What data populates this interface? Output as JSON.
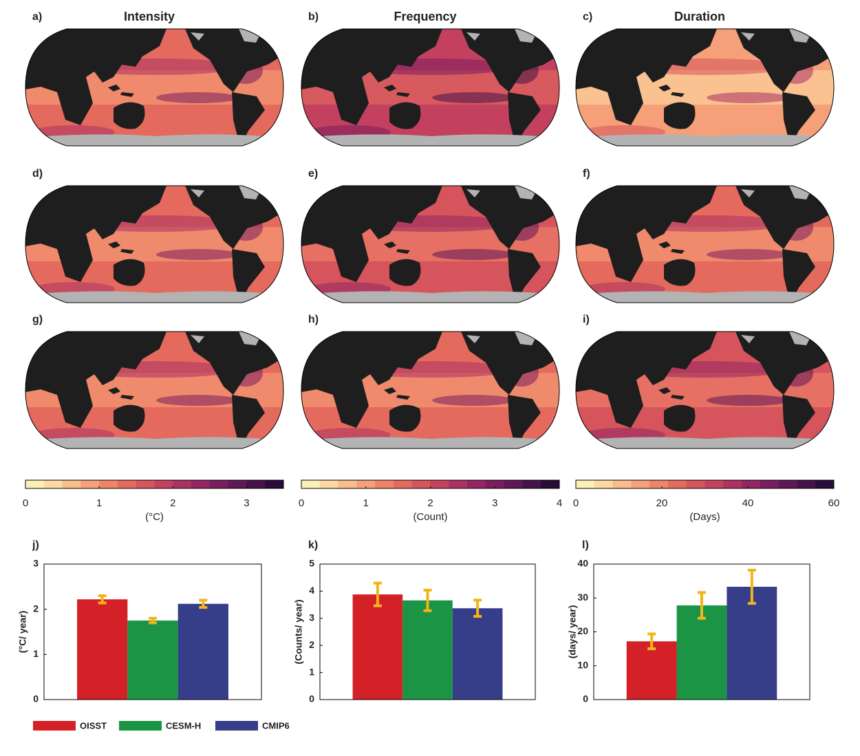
{
  "maps": {
    "column_titles": [
      "Intensity",
      "Frequency",
      "Duration"
    ],
    "panel_labels": [
      "a)",
      "b)",
      "c)",
      "d)",
      "e)",
      "f)",
      "g)",
      "h)",
      "i)"
    ]
  },
  "colormap": [
    "#fdf0b7",
    "#fbd9a0",
    "#f8bd8a",
    "#f5a078",
    "#ef8468",
    "#e56a5e",
    "#d6545c",
    "#c3415f",
    "#ac3262",
    "#932662",
    "#7a1d5f",
    "#5f1757",
    "#45124a",
    "#2a0c38"
  ],
  "colorbars": [
    {
      "xlim": [
        0,
        3.5
      ],
      "xticks": [
        0,
        1,
        2,
        3
      ],
      "label": "(°C)"
    },
    {
      "xlim": [
        0,
        4
      ],
      "xticks": [
        0,
        1,
        2,
        3,
        4
      ],
      "label": "(Count)"
    },
    {
      "xlim": [
        0,
        60
      ],
      "xticks": [
        0,
        20,
        40,
        60
      ],
      "label": "(Days)"
    }
  ],
  "chart_data": [
    {
      "type": "bar",
      "panel_label": "j)",
      "ylabel": "(°C/ year)",
      "ylim": [
        0,
        3
      ],
      "yticks": [
        0,
        1,
        2,
        3
      ],
      "series": [
        {
          "name": "OISST",
          "color": "#d42027",
          "values": [
            2.22
          ],
          "errors": [
            0.08
          ]
        },
        {
          "name": "CESM-H",
          "color": "#1b9446",
          "values": [
            1.75
          ],
          "errors": [
            0.05
          ]
        },
        {
          "name": "CMIP6",
          "color": "#363d89",
          "values": [
            2.12
          ],
          "errors": [
            0.08
          ]
        }
      ]
    },
    {
      "type": "bar",
      "panel_label": "k)",
      "ylabel": "(Counts/ year)",
      "ylim": [
        0,
        5
      ],
      "yticks": [
        0,
        1,
        2,
        3,
        4,
        5
      ],
      "series": [
        {
          "name": "OISST",
          "color": "#d42027",
          "values": [
            3.88
          ],
          "errors": [
            0.42
          ]
        },
        {
          "name": "CESM-H",
          "color": "#1b9446",
          "values": [
            3.66
          ],
          "errors": [
            0.38
          ]
        },
        {
          "name": "CMIP6",
          "color": "#363d89",
          "values": [
            3.37
          ],
          "errors": [
            0.3
          ]
        }
      ]
    },
    {
      "type": "bar",
      "panel_label": "l)",
      "ylabel": "(days/ year)",
      "ylim": [
        0,
        40
      ],
      "yticks": [
        0,
        10,
        20,
        30,
        40
      ],
      "series": [
        {
          "name": "OISST",
          "color": "#d42027",
          "values": [
            17.2
          ],
          "errors": [
            2.2
          ]
        },
        {
          "name": "CESM-H",
          "color": "#1b9446",
          "values": [
            27.8
          ],
          "errors": [
            3.8
          ]
        },
        {
          "name": "CMIP6",
          "color": "#363d89",
          "values": [
            33.3
          ],
          "errors": [
            4.9
          ]
        }
      ]
    }
  ]
}
